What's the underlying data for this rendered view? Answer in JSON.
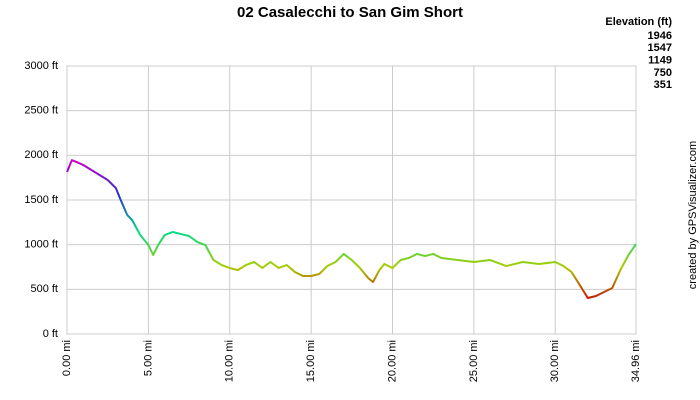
{
  "chart_data": {
    "type": "line",
    "title": "02 Casalecchi to San Gim Short",
    "x": [
      0,
      0.3,
      0.6,
      1.0,
      1.5,
      2.0,
      2.5,
      3.0,
      3.3,
      3.7,
      4.0,
      4.5,
      5.0,
      5.3,
      5.6,
      6.0,
      6.5,
      7.0,
      7.5,
      8.0,
      8.5,
      9.0,
      9.5,
      10.0,
      10.5,
      11.0,
      11.5,
      12.0,
      12.5,
      13.0,
      13.5,
      14.0,
      14.5,
      15.0,
      15.5,
      16.0,
      16.5,
      17.0,
      17.5,
      18.0,
      18.5,
      18.8,
      19.2,
      19.5,
      20.0,
      20.5,
      21.0,
      21.5,
      22.0,
      22.5,
      23.0,
      24.0,
      25.0,
      26.0,
      27.0,
      28.0,
      29.0,
      30.0,
      30.5,
      31.0,
      31.5,
      32.0,
      32.5,
      33.0,
      33.5,
      34.0,
      34.5,
      34.96
    ],
    "series": [
      {
        "name": "Elevation",
        "values": [
          1813,
          1946,
          1925,
          1892,
          1836,
          1780,
          1724,
          1634,
          1500,
          1332,
          1276,
          1108,
          996,
          884,
          996,
          1108,
          1142,
          1119,
          1097,
          1030,
          996,
          828,
          772,
          739,
          716,
          772,
          806,
          739,
          806,
          739,
          772,
          694,
          649,
          649,
          672,
          761,
          806,
          896,
          828,
          739,
          627,
          582,
          716,
          784,
          739,
          828,
          851,
          896,
          873,
          896,
          851,
          828,
          806,
          828,
          761,
          806,
          784,
          806,
          761,
          694,
          549,
          403,
          425,
          470,
          515,
          716,
          884,
          1007
        ]
      }
    ],
    "xlim": [
      0,
      34.96
    ],
    "ylim": [
      0,
      3000
    ],
    "xticks": [
      {
        "value": 0,
        "label": "0.00 mi"
      },
      {
        "value": 5,
        "label": "5.00 mi"
      },
      {
        "value": 10,
        "label": "10.00 mi"
      },
      {
        "value": 15,
        "label": "15.00 mi"
      },
      {
        "value": 20,
        "label": "20.00 mi"
      },
      {
        "value": 25,
        "label": "25.00 mi"
      },
      {
        "value": 30,
        "label": "30.00 mi"
      },
      {
        "value": 34.96,
        "label": "34.96 mi"
      }
    ],
    "yticks": [
      {
        "value": 0,
        "label": "0 ft"
      },
      {
        "value": 500,
        "label": "500 ft"
      },
      {
        "value": 1000,
        "label": "1000 ft"
      },
      {
        "value": 1500,
        "label": "1500 ft"
      },
      {
        "value": 2000,
        "label": "2000 ft"
      },
      {
        "value": 2500,
        "label": "2500 ft"
      },
      {
        "value": 3000,
        "label": "3000 ft"
      }
    ],
    "grid": true,
    "legend_title": "Elevation (ft)",
    "color_scale": [
      {
        "value": 1946,
        "color": "#cc00cc"
      },
      {
        "value": 1547,
        "color": "#2233cc"
      },
      {
        "value": 1149,
        "color": "#00dd88"
      },
      {
        "value": 750,
        "color": "#aacc00"
      },
      {
        "value": 351,
        "color": "#cc0000"
      }
    ],
    "credit": "created by GPSVisualizer.com"
  }
}
